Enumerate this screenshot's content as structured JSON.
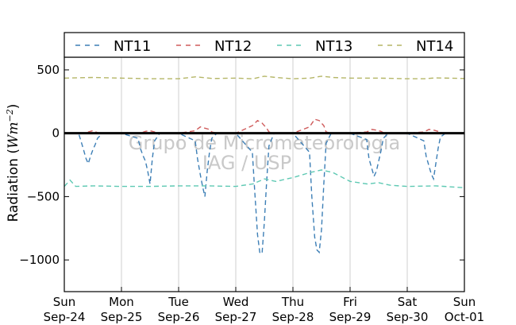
{
  "chart_data": {
    "type": "line",
    "title": "",
    "xlabel": "",
    "ylabel_prefix": "Radiation (",
    "ylabel_unit": "Wm",
    "ylabel_exp": "−2",
    "ylabel_suffix": ")",
    "xlim": [
      0,
      7
    ],
    "ylim": [
      -1250,
      600
    ],
    "yticks": [
      500,
      0,
      -500,
      -1000
    ],
    "ytick_labels": [
      "500",
      "0",
      "−500",
      "−1000"
    ],
    "xticks": [
      {
        "day": "Sun",
        "date": "Sep-24"
      },
      {
        "day": "Mon",
        "date": "Sep-25"
      },
      {
        "day": "Tue",
        "date": "Sep-26"
      },
      {
        "day": "Wed",
        "date": "Sep-27"
      },
      {
        "day": "Thu",
        "date": "Sep-28"
      },
      {
        "day": "Fri",
        "date": "Sep-29"
      },
      {
        "day": "Sat",
        "date": "Sep-30"
      },
      {
        "day": "Sun",
        "date": "Oct-01"
      }
    ],
    "grid": "vertical",
    "legend_position": "top",
    "watermark": [
      "Grupo de Micrometeorologia",
      "IAG / USP"
    ],
    "series": [
      {
        "name": "NT11",
        "color": "#3d7fb6",
        "x": [
          0.0,
          0.25,
          0.29,
          0.33,
          0.38,
          0.42,
          0.46,
          0.5,
          0.54,
          0.58,
          0.67,
          1.0,
          1.29,
          1.33,
          1.38,
          1.42,
          1.46,
          1.5,
          1.54,
          1.58,
          1.67,
          2.0,
          2.29,
          2.33,
          2.38,
          2.42,
          2.46,
          2.5,
          2.54,
          2.58,
          2.67,
          3.0,
          3.29,
          3.33,
          3.38,
          3.42,
          3.46,
          3.5,
          3.54,
          3.58,
          3.67,
          4.0,
          4.29,
          4.33,
          4.38,
          4.42,
          4.46,
          4.5,
          4.54,
          4.58,
          4.67,
          5.0,
          5.29,
          5.33,
          5.38,
          5.42,
          5.46,
          5.5,
          5.54,
          5.58,
          5.67,
          6.0,
          6.29,
          6.33,
          6.38,
          6.42,
          6.46,
          6.5,
          6.54,
          6.58,
          6.67,
          7.0
        ],
        "y": [
          0,
          0,
          -60,
          -120,
          -200,
          -240,
          -180,
          -130,
          -90,
          -40,
          0,
          0,
          -40,
          -120,
          -180,
          -220,
          -300,
          -400,
          -200,
          -60,
          0,
          0,
          -60,
          -200,
          -330,
          -420,
          -500,
          -300,
          -150,
          -40,
          0,
          0,
          -150,
          -450,
          -800,
          -940,
          -950,
          -700,
          -380,
          -100,
          0,
          0,
          -150,
          -500,
          -820,
          -920,
          -940,
          -760,
          -400,
          -80,
          0,
          0,
          -50,
          -200,
          -280,
          -340,
          -300,
          -220,
          -140,
          -40,
          0,
          0,
          -60,
          -180,
          -260,
          -320,
          -360,
          -240,
          -120,
          -30,
          0,
          0
        ]
      },
      {
        "name": "NT12",
        "color": "#cf5b5b",
        "x": [
          0.0,
          0.33,
          0.42,
          0.5,
          0.58,
          0.67,
          1.0,
          1.33,
          1.42,
          1.5,
          1.58,
          1.67,
          2.0,
          2.29,
          2.38,
          2.46,
          2.54,
          2.58,
          2.67,
          3.0,
          3.29,
          3.38,
          3.46,
          3.54,
          3.58,
          3.67,
          4.0,
          4.29,
          4.38,
          4.46,
          4.54,
          4.58,
          4.67,
          5.0,
          5.29,
          5.38,
          5.46,
          5.54,
          5.58,
          5.67,
          6.0,
          6.29,
          6.38,
          6.46,
          6.54,
          6.58,
          6.67,
          7.0
        ],
        "y": [
          0,
          0,
          10,
          20,
          5,
          0,
          0,
          0,
          15,
          20,
          10,
          0,
          0,
          20,
          50,
          40,
          30,
          10,
          0,
          0,
          60,
          100,
          80,
          40,
          10,
          0,
          0,
          50,
          110,
          100,
          60,
          10,
          0,
          0,
          10,
          30,
          25,
          15,
          5,
          0,
          0,
          10,
          30,
          25,
          15,
          5,
          0,
          0
        ]
      },
      {
        "name": "NT13",
        "color": "#5ec9b3",
        "x": [
          0.0,
          0.1,
          0.2,
          0.5,
          1.0,
          1.5,
          2.0,
          2.5,
          3.0,
          3.3,
          3.5,
          3.7,
          4.0,
          4.3,
          4.5,
          4.7,
          5.0,
          5.3,
          5.5,
          5.7,
          6.0,
          6.5,
          7.0
        ],
        "y": [
          -420,
          -370,
          -420,
          -415,
          -420,
          -420,
          -415,
          -415,
          -420,
          -400,
          -360,
          -380,
          -350,
          -310,
          -290,
          -310,
          -380,
          -400,
          -390,
          -410,
          -420,
          -415,
          -430
        ]
      },
      {
        "name": "NT14",
        "color": "#b5b667",
        "x": [
          0.0,
          0.5,
          1.0,
          1.5,
          2.0,
          2.3,
          2.6,
          3.0,
          3.3,
          3.5,
          3.7,
          4.0,
          4.3,
          4.5,
          4.7,
          5.0,
          5.5,
          6.0,
          6.3,
          6.5,
          7.0
        ],
        "y": [
          435,
          440,
          435,
          430,
          430,
          445,
          432,
          435,
          430,
          450,
          440,
          430,
          435,
          450,
          440,
          435,
          435,
          430,
          430,
          437,
          432
        ]
      }
    ]
  }
}
